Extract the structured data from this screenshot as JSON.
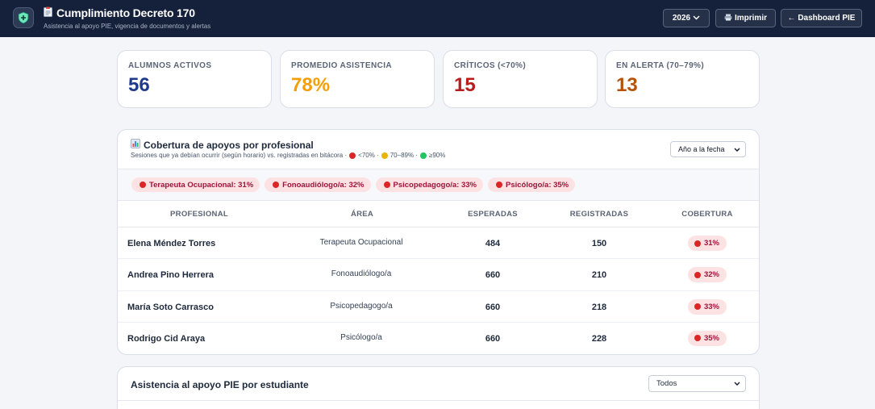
{
  "header": {
    "title": "Cumplimiento Decreto 170",
    "subtitle": "Asistencia al apoyo PIE, vigencia de documentos y alertas",
    "year": "2026",
    "print_label": "Imprimir",
    "dashboard_label": "← Dashboard PIE"
  },
  "kpis": [
    {
      "label": "ALUMNOS ACTIVOS",
      "value": "56",
      "color": "#1e3a8a"
    },
    {
      "label": "PROMEDIO ASISTENCIA",
      "value": "78%",
      "color": "#f59e0b"
    },
    {
      "label": "CRÍTICOS (<70%)",
      "value": "15",
      "color": "#b91c1c"
    },
    {
      "label": "EN ALERTA (70–79%)",
      "value": "13",
      "color": "#b45309"
    }
  ],
  "coverage": {
    "title": "Cobertura de apoyos por profesional",
    "subtitle": "Sesiones que ya debían ocurrir (según horario) vs. registradas en bitácora ·",
    "legend": {
      "red": "<70% ·",
      "yellow": "70–89% ·",
      "green": "≥90%"
    },
    "range": "Año a la fecha",
    "chips": [
      "Terapeuta Ocupacional: 31%",
      "Fonoaudiólogo/a: 32%",
      "Psicopedagogo/a: 33%",
      "Psicólogo/a: 35%"
    ],
    "columns": [
      "PROFESIONAL",
      "ÁREA",
      "ESPERADAS",
      "REGISTRADAS",
      "COBERTURA"
    ],
    "rows": [
      {
        "name": "Elena Méndez Torres",
        "area": "Terapeuta Ocupacional",
        "expected": "484",
        "registered": "150",
        "coverage": "31%"
      },
      {
        "name": "Andrea Pino Herrera",
        "area": "Fonoaudiólogo/a",
        "expected": "660",
        "registered": "210",
        "coverage": "32%"
      },
      {
        "name": "María Soto Carrasco",
        "area": "Psicopedagogo/a",
        "expected": "660",
        "registered": "218",
        "coverage": "33%"
      },
      {
        "name": "Rodrigo Cid Araya",
        "area": "Psicólogo/a",
        "expected": "660",
        "registered": "228",
        "coverage": "35%"
      }
    ]
  },
  "attendance": {
    "title": "Asistencia al apoyo PIE por estudiante",
    "filter": "Todos"
  },
  "icons": {
    "logo": "shield-plus-icon",
    "title": "clipboard-icon",
    "print": "printer-icon",
    "chart": "bar-chart-icon",
    "dropdown": "chevron-down-icon"
  }
}
